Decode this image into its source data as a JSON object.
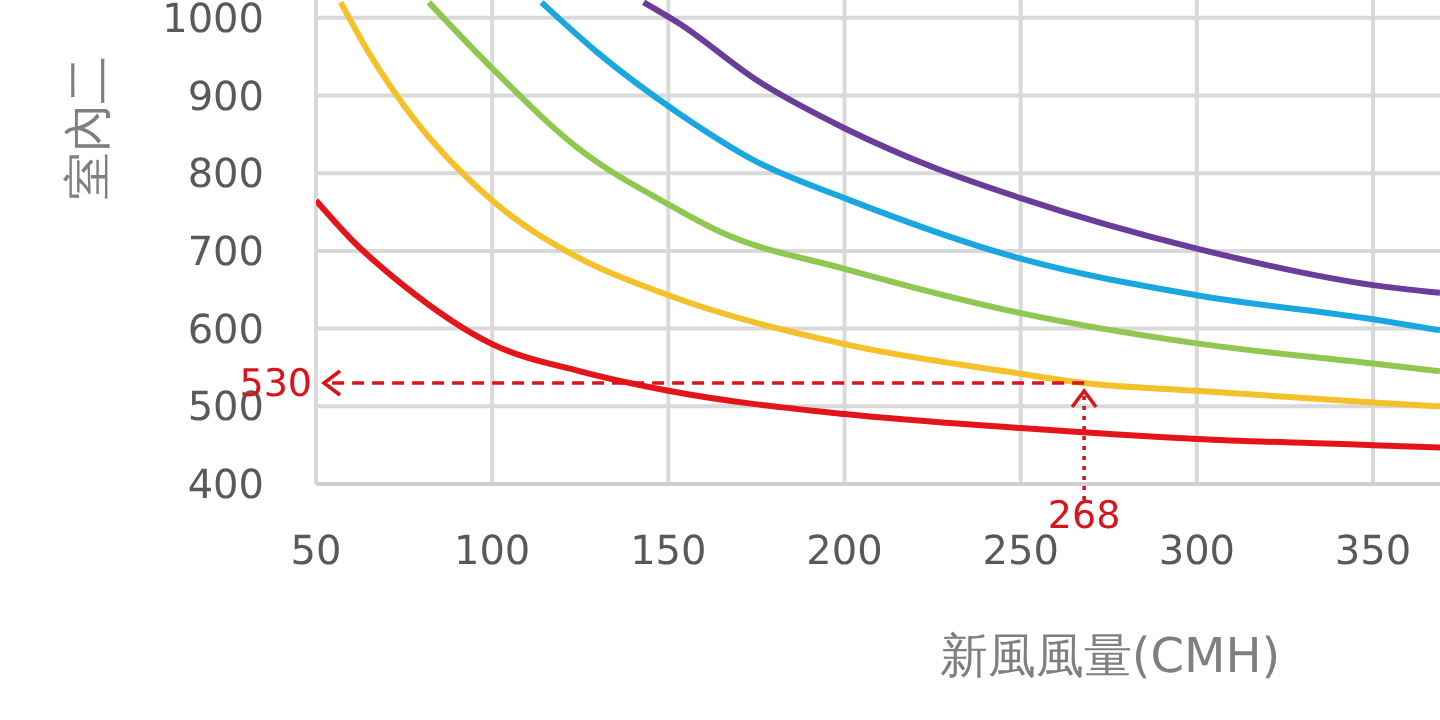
{
  "chart_data": {
    "type": "line",
    "xlabel": "新風風量(CMH)",
    "ylabel": "室內二",
    "xlim": [
      50,
      369
    ],
    "ylim": [
      400,
      1023
    ],
    "xticks": [
      50,
      100,
      150,
      200,
      250,
      300,
      350
    ],
    "yticks": [
      400,
      500,
      600,
      700,
      800,
      900,
      1000
    ],
    "grid": true,
    "marker": "none",
    "line_style": "solid",
    "series": [
      {
        "color": "#e3151b",
        "x": [
          50,
          60,
          75,
          100,
          125,
          150,
          200,
          250,
          300,
          350,
          369
        ],
        "values": [
          765,
          715,
          655,
          580,
          545,
          520,
          490,
          472,
          458,
          450,
          447
        ]
      },
      {
        "color": "#f5c12a",
        "x": [
          57,
          65,
          75,
          100,
          125,
          150,
          200,
          250,
          268,
          300,
          350,
          369
        ],
        "values": [
          1020,
          955,
          887,
          765,
          690,
          643,
          580,
          542,
          530,
          520,
          505,
          500
        ]
      },
      {
        "color": "#8fc750",
        "x": [
          82,
          100,
          125,
          150,
          165,
          200,
          250,
          300,
          350,
          369
        ],
        "values": [
          1020,
          935,
          830,
          760,
          724,
          677,
          620,
          581,
          555,
          545
        ]
      },
      {
        "color": "#1aa7e0",
        "x": [
          114,
          130,
          153,
          175,
          200,
          250,
          300,
          350,
          369
        ],
        "values": [
          1020,
          955,
          877,
          815,
          768,
          690,
          643,
          612,
          598
        ]
      },
      {
        "color": "#6a3d9a",
        "x": [
          143,
          153,
          175,
          200,
          225,
          250,
          300,
          350,
          369
        ],
        "values": [
          1020,
          993,
          920,
          858,
          808,
          768,
          703,
          656,
          646
        ]
      }
    ],
    "annotations": [
      {
        "text": "530",
        "x": 268,
        "y": 530
      },
      {
        "text": "268",
        "x": 268,
        "y": 530
      }
    ]
  }
}
